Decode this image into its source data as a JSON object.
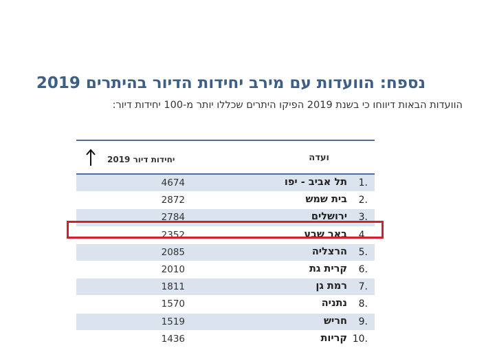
{
  "title": "נספח: הוועדות עם מירב יחידות הדיור בהיתרים 2019",
  "subtitle": "הוועדות הבאות דיווחו כי בשנת 2019 הפיקו היתרים שכללו יותר מ-100 יחידות דיור:",
  "table": {
    "header_committee": "ועדה",
    "header_units": "יחידות דיור 2019",
    "sort_icon": "arrow-up-icon",
    "rows": [
      {
        "rank": "1.",
        "name": "תל אביב - יפו",
        "units": "4674"
      },
      {
        "rank": "2.",
        "name": "בית שמש",
        "units": "2872"
      },
      {
        "rank": "3.",
        "name": "ירושלים",
        "units": "2784"
      },
      {
        "rank": "4.",
        "name": "באר שבע",
        "units": "2352"
      },
      {
        "rank": "5.",
        "name": "הרצליה",
        "units": "2085"
      },
      {
        "rank": "6.",
        "name": "קרית גת",
        "units": "2010"
      },
      {
        "rank": "7.",
        "name": "רמת גן",
        "units": "1811"
      },
      {
        "rank": "8.",
        "name": "נתניה",
        "units": "1570"
      },
      {
        "rank": "9.",
        "name": "חריש",
        "units": "1519"
      },
      {
        "rank": "10.",
        "name": "קריות",
        "units": "1436"
      }
    ]
  },
  "highlight": {
    "row_rank": "4.",
    "color": "#d3202a"
  },
  "colors": {
    "title": "#3d5f86",
    "row_shade": "#dbe3ef",
    "rule": "#4a6f96"
  }
}
